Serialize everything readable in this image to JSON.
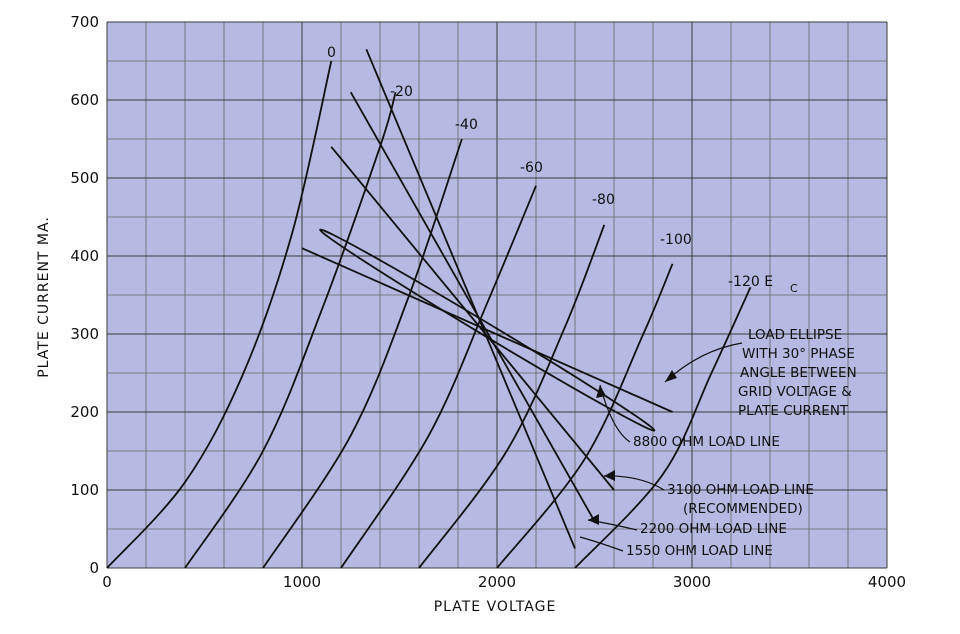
{
  "colors": {
    "plot_background": "#b6b9e2",
    "ink": "#111111",
    "grid": "#3a3a3a"
  },
  "chart_data": {
    "type": "line",
    "title": "",
    "xlabel": "PLATE VOLTAGE",
    "ylabel": "PLATE CURRENT MA.",
    "xlim": [
      0,
      4000
    ],
    "ylim": [
      0,
      700
    ],
    "xticks": [
      0,
      1000,
      2000,
      3000,
      4000
    ],
    "yticks": [
      0,
      100,
      200,
      300,
      400,
      500,
      600,
      700
    ],
    "xtick_labels": [
      "0",
      "1000",
      "2000",
      "3000",
      "4000"
    ],
    "ytick_labels": [
      "0",
      "100",
      "200",
      "300",
      "400",
      "500",
      "600",
      "700"
    ],
    "grid": true,
    "grid_step": {
      "x": 200,
      "y": 50
    },
    "series": [
      {
        "name": "0",
        "points": [
          [
            0,
            0
          ],
          [
            400,
            110
          ],
          [
            700,
            250
          ],
          [
            950,
            430
          ],
          [
            1150,
            650
          ]
        ]
      },
      {
        "name": "-20",
        "points": [
          [
            400,
            0
          ],
          [
            800,
            150
          ],
          [
            1100,
            330
          ],
          [
            1400,
            540
          ],
          [
            1480,
            610
          ]
        ]
      },
      {
        "name": "-40",
        "points": [
          [
            800,
            0
          ],
          [
            1250,
            170
          ],
          [
            1550,
            350
          ],
          [
            1820,
            550
          ]
        ]
      },
      {
        "name": "-60",
        "points": [
          [
            1200,
            0
          ],
          [
            1650,
            170
          ],
          [
            1950,
            340
          ],
          [
            2200,
            490
          ]
        ]
      },
      {
        "name": "-80",
        "points": [
          [
            1600,
            0
          ],
          [
            2050,
            150
          ],
          [
            2350,
            310
          ],
          [
            2550,
            440
          ]
        ]
      },
      {
        "name": "-100",
        "points": [
          [
            2000,
            0
          ],
          [
            2450,
            140
          ],
          [
            2750,
            300
          ],
          [
            2900,
            390
          ]
        ]
      },
      {
        "name": "-120 EC",
        "points": [
          [
            2400,
            0
          ],
          [
            2850,
            120
          ],
          [
            3100,
            250
          ],
          [
            3300,
            360
          ]
        ]
      }
    ],
    "curve_labels": [
      "0",
      "-20",
      "-40",
      "-60",
      "-80",
      "-100",
      "-120 E",
      "C"
    ],
    "load_lines": [
      {
        "name": "8800 OHM LOAD LINE",
        "points": [
          [
            1000,
            410
          ],
          [
            2900,
            200
          ]
        ]
      },
      {
        "name": "3100 OHM LOAD LINE",
        "points": [
          [
            1150,
            540
          ],
          [
            2600,
            100
          ]
        ]
      },
      {
        "name": "2200 OHM LOAD LINE",
        "points": [
          [
            1250,
            610
          ],
          [
            2500,
            60
          ]
        ]
      },
      {
        "name": "1550 OHM LOAD LINE",
        "points": [
          [
            1330,
            665
          ],
          [
            2400,
            25
          ]
        ]
      }
    ],
    "load_ellipse": {
      "center": [
        1950,
        305
      ],
      "semi_major_v": 1000,
      "semi_minor_v": 32,
      "angle_deg": -31
    },
    "annotations": {
      "ellipse_note": [
        "LOAD ELLIPSE",
        "WITH 30° PHASE",
        "ANGLE BETWEEN",
        "GRID VOLTAGE &",
        "PLATE CURRENT"
      ],
      "line_8800": "8800 OHM LOAD LINE",
      "line_3100": [
        "3100 OHM LOAD LINE",
        "(RECOMMENDED)"
      ],
      "line_2200": "2200 OHM LOAD LINE",
      "line_1550": "1550 OHM LOAD LINE"
    }
  }
}
